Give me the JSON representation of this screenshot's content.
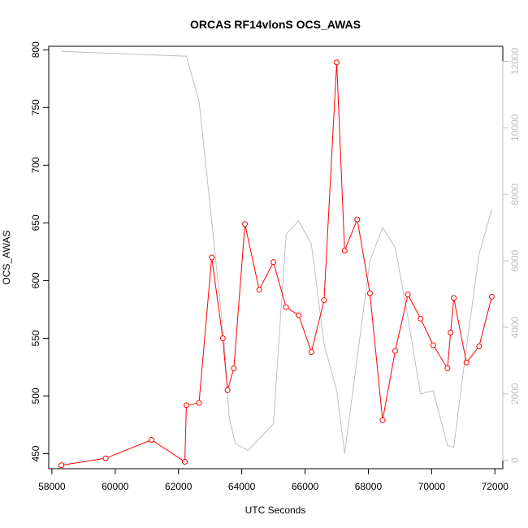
{
  "chart_data": {
    "type": "line",
    "title": "ORCAS RF14vlonS OCS_AWAS",
    "xlabel": "UTC Seconds",
    "ylabel": "OCS_AWAS",
    "xlim": [
      57900,
      72250
    ],
    "ylim": [
      437,
      803
    ],
    "y2lim": [
      -250,
      12450
    ],
    "x_ticks": [
      58000,
      60000,
      62000,
      64000,
      66000,
      68000,
      70000,
      72000
    ],
    "y_ticks": [
      450,
      500,
      550,
      600,
      650,
      700,
      750,
      800
    ],
    "y2_ticks": [
      0,
      2000,
      4000,
      6000,
      8000,
      10000,
      12000
    ],
    "grid": false,
    "colors": {
      "primary": "#ff0000",
      "secondary": "#bfbfbf",
      "axis": "#000000"
    },
    "series": [
      {
        "axis": "left",
        "x": [
          58300,
          59700,
          61150,
          62200,
          62250,
          62650,
          63050,
          63400,
          63550,
          63750,
          64100,
          64550,
          65000,
          65400,
          65800,
          66200,
          66600,
          67000,
          67250,
          67650,
          68050,
          68450,
          68850,
          69250,
          69650,
          70050,
          70500,
          70600,
          70700,
          71100,
          71500,
          71900
        ],
        "y": [
          440,
          446,
          462,
          443,
          492,
          494,
          620,
          550,
          505,
          524,
          649,
          592,
          616,
          577,
          570,
          538,
          583,
          789,
          626,
          653,
          589,
          479,
          539,
          588,
          567,
          544,
          524,
          555,
          585,
          529,
          543,
          586
        ]
      },
      {
        "axis": "right",
        "x": [
          58300,
          62250,
          62650,
          63050,
          63450,
          63600,
          63800,
          64200,
          65000,
          65400,
          65800,
          66200,
          66600,
          67000,
          67250,
          68050,
          68450,
          68850,
          69250,
          69650,
          70050,
          70500,
          70700,
          71100,
          71500,
          71900
        ],
        "y": [
          12300,
          12150,
          10800,
          7200,
          3500,
          1300,
          500,
          300,
          1100,
          6800,
          7200,
          6500,
          3500,
          2100,
          200,
          6000,
          7000,
          6400,
          4300,
          2000,
          2100,
          450,
          400,
          3400,
          6200,
          7550
        ]
      }
    ]
  }
}
